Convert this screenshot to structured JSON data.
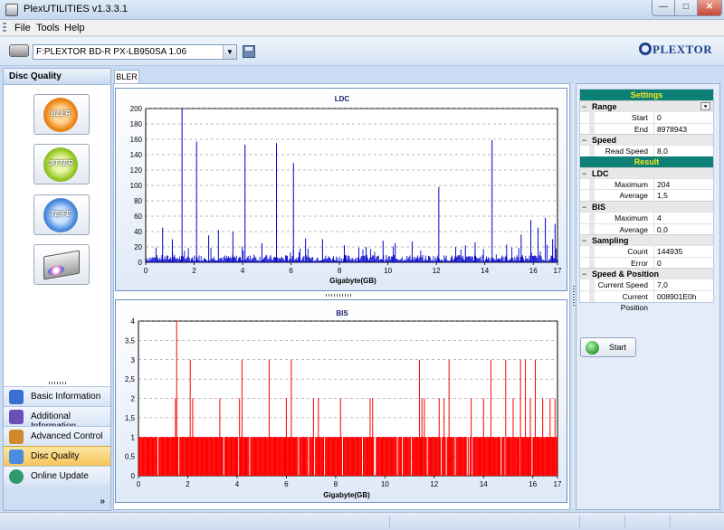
{
  "window": {
    "title": "PlexUTILITIES v1.3.3.1"
  },
  "menu": [
    "File",
    "Tools",
    "Help"
  ],
  "toolbar": {
    "drive": "F:PLEXTOR BD-R  PX-LB950SA 1.06",
    "logo": "PLEXTOR"
  },
  "sidebar": {
    "title": "Disc Quality",
    "tests": [
      {
        "label": "BLER",
        "icon": "bler-disc-icon"
      },
      {
        "label": "JITTER",
        "icon": "jitter-disc-icon"
      },
      {
        "label": "TE/FE",
        "icon": "tefe-disc-icon"
      },
      {
        "label": "",
        "icon": "drive-disc-icon"
      }
    ],
    "nav": [
      {
        "label": "Basic Information",
        "icon": "info-icon",
        "color": "#3b6fd0",
        "active": false
      },
      {
        "label": "Additional Information",
        "icon": "additional-info-icon",
        "color": "#6a4fb5",
        "active": false
      },
      {
        "label": "Advanced Control",
        "icon": "tools-icon",
        "color": "#d08a2b",
        "active": false
      },
      {
        "label": "Disc Quality",
        "icon": "disc-icon",
        "color": "#4a8de0",
        "active": true
      },
      {
        "label": "Online Update",
        "icon": "globe-icon",
        "color": "#2f9a6b",
        "active": false
      }
    ]
  },
  "tabs": [
    "BLER"
  ],
  "charts": {
    "ldc_title": "LDC",
    "bis_title": "BIS",
    "xlabel": "Gigabyte(GB)"
  },
  "chart_data": [
    {
      "type": "bar",
      "title": "LDC",
      "xlabel": "Gigabyte(GB)",
      "ylabel": "",
      "xlim": [
        0,
        17
      ],
      "ylim": [
        0,
        200
      ],
      "xticks": [
        0,
        2,
        4,
        6,
        8,
        10,
        12,
        14,
        16,
        17
      ],
      "yticks": [
        0,
        20,
        40,
        60,
        80,
        100,
        120,
        140,
        160,
        180,
        200
      ],
      "baseline_level": 5,
      "peaks": [
        {
          "x": 1.5,
          "y": 204
        },
        {
          "x": 2.1,
          "y": 157
        },
        {
          "x": 4.1,
          "y": 153
        },
        {
          "x": 5.4,
          "y": 155
        },
        {
          "x": 6.1,
          "y": 129
        },
        {
          "x": 12.1,
          "y": 98
        },
        {
          "x": 14.3,
          "y": 159
        },
        {
          "x": 0.7,
          "y": 45
        },
        {
          "x": 1.1,
          "y": 30
        },
        {
          "x": 2.6,
          "y": 35
        },
        {
          "x": 3.0,
          "y": 42
        },
        {
          "x": 3.6,
          "y": 40
        },
        {
          "x": 4.8,
          "y": 25
        },
        {
          "x": 6.6,
          "y": 31
        },
        {
          "x": 7.3,
          "y": 30
        },
        {
          "x": 8.2,
          "y": 22
        },
        {
          "x": 8.8,
          "y": 19
        },
        {
          "x": 9.1,
          "y": 20
        },
        {
          "x": 9.8,
          "y": 28
        },
        {
          "x": 10.3,
          "y": 25
        },
        {
          "x": 11.0,
          "y": 27
        },
        {
          "x": 12.8,
          "y": 20
        },
        {
          "x": 13.2,
          "y": 22
        },
        {
          "x": 13.6,
          "y": 26
        },
        {
          "x": 14.9,
          "y": 23
        },
        {
          "x": 15.5,
          "y": 36
        },
        {
          "x": 15.9,
          "y": 55
        },
        {
          "x": 16.2,
          "y": 45
        },
        {
          "x": 16.5,
          "y": 58
        },
        {
          "x": 16.8,
          "y": 30
        },
        {
          "x": 16.9,
          "y": 50
        }
      ],
      "color": "#0000cc"
    },
    {
      "type": "bar",
      "title": "BIS",
      "xlabel": "Gigabyte(GB)",
      "ylabel": "",
      "xlim": [
        0,
        17
      ],
      "ylim": [
        0,
        4
      ],
      "xticks": [
        0,
        2,
        4,
        6,
        8,
        10,
        12,
        14,
        16,
        17
      ],
      "yticks": [
        0,
        0.5,
        1,
        1.5,
        2,
        2.5,
        3,
        3.5,
        4
      ],
      "ytick_labels": [
        "0",
        "0,5",
        "1",
        "1,5",
        "2",
        "2,5",
        "3",
        "3,5",
        "4"
      ],
      "baseline_level": 1,
      "peaks": [
        {
          "x": 1.55,
          "y": 4
        },
        {
          "x": 1.5,
          "y": 2
        },
        {
          "x": 2.1,
          "y": 3
        },
        {
          "x": 2.2,
          "y": 2
        },
        {
          "x": 3.3,
          "y": 2
        },
        {
          "x": 4.1,
          "y": 2
        },
        {
          "x": 4.2,
          "y": 3
        },
        {
          "x": 5.3,
          "y": 3
        },
        {
          "x": 6.0,
          "y": 2
        },
        {
          "x": 6.2,
          "y": 3
        },
        {
          "x": 7.1,
          "y": 2
        },
        {
          "x": 7.3,
          "y": 2
        },
        {
          "x": 8.2,
          "y": 2
        },
        {
          "x": 9.4,
          "y": 2
        },
        {
          "x": 9.5,
          "y": 2
        },
        {
          "x": 11.4,
          "y": 3
        },
        {
          "x": 11.5,
          "y": 2
        },
        {
          "x": 11.6,
          "y": 2
        },
        {
          "x": 12.2,
          "y": 2
        },
        {
          "x": 12.4,
          "y": 2
        },
        {
          "x": 12.6,
          "y": 3
        },
        {
          "x": 13.5,
          "y": 2
        },
        {
          "x": 14.0,
          "y": 2
        },
        {
          "x": 14.3,
          "y": 3
        },
        {
          "x": 14.9,
          "y": 3
        },
        {
          "x": 15.2,
          "y": 2
        },
        {
          "x": 15.5,
          "y": 3
        },
        {
          "x": 15.7,
          "y": 3
        },
        {
          "x": 15.9,
          "y": 2
        },
        {
          "x": 16.1,
          "y": 3
        },
        {
          "x": 16.4,
          "y": 2
        },
        {
          "x": 16.7,
          "y": 2
        },
        {
          "x": 16.9,
          "y": 2
        }
      ],
      "color": "#ff0000"
    }
  ],
  "settings": {
    "header": "Settings",
    "range": {
      "label": "Range",
      "start_label": "Start",
      "start": "0",
      "end_label": "End",
      "end": "8978943"
    },
    "speed": {
      "label": "Speed",
      "read_label": "Read Speed",
      "read": "8,0"
    }
  },
  "result": {
    "header": "Result",
    "ldc": {
      "label": "LDC",
      "max_label": "Maximum",
      "max": "204",
      "avg_label": "Average",
      "avg": "1,5"
    },
    "bis": {
      "label": "BIS",
      "max_label": "Maximum",
      "max": "4",
      "avg_label": "Average",
      "avg": "0,0"
    },
    "sampling": {
      "label": "Sampling",
      "count_label": "Count",
      "count": "144935",
      "error_label": "Error",
      "error": "0"
    },
    "speed_pos": {
      "label": "Speed & Position",
      "cur_speed_label": "Current Speed",
      "cur_speed": "7,0",
      "cur_pos_label": "Current Position",
      "cur_pos": "008901E0h"
    }
  },
  "start_button": "Start",
  "colors": {
    "accent": "#0c7f76",
    "header_text": "#f7e61b",
    "ldc": "#0000cc",
    "bis": "#ff0000"
  }
}
